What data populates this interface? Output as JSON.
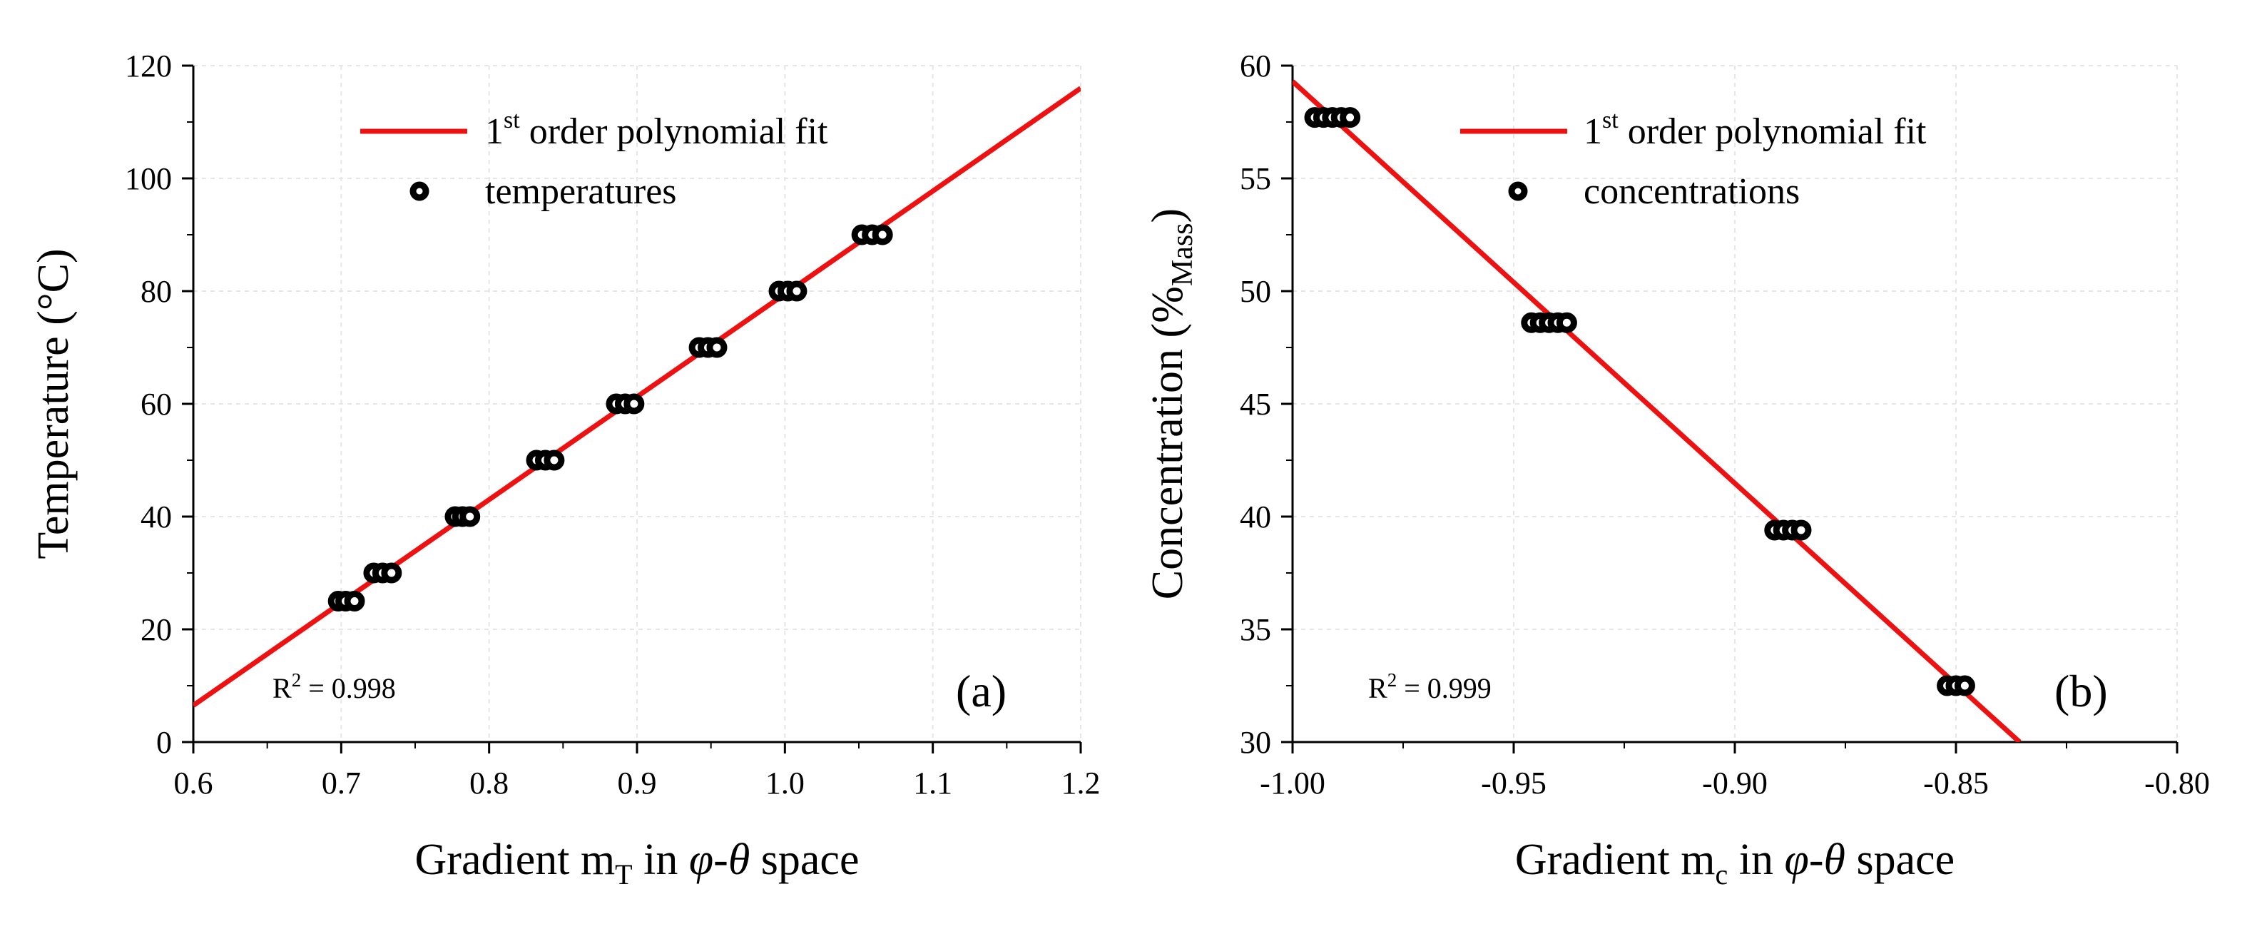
{
  "chart_data": [
    {
      "type": "scatter",
      "panel_label": "(a)",
      "xlabel": {
        "prefix": "Gradient m",
        "subscript": "T",
        "mid": " in ",
        "var1": "φ",
        "dash": "-",
        "var2": "θ",
        "suffix": " space"
      },
      "ylabel": "Temperature (°C)",
      "xlim": [
        0.6,
        1.2
      ],
      "ylim": [
        0,
        120
      ],
      "x_ticks": [
        "0.6",
        "0.7",
        "0.8",
        "0.9",
        "1.0",
        "1.1",
        "1.2"
      ],
      "y_ticks": [
        "0",
        "20",
        "40",
        "60",
        "80",
        "100",
        "120"
      ],
      "legend": {
        "fit": {
          "pre": "1",
          "sup": "st",
          "post": " order polynomial fit"
        },
        "points": "temperatures",
        "position": "top-center"
      },
      "r2": {
        "pre": "R",
        "sup": "2",
        "post": " = 0.998"
      },
      "fit_line": {
        "x": [
          0.6,
          1.2
        ],
        "y": [
          6.5,
          116
        ]
      },
      "series": [
        {
          "name": "temperatures",
          "y": 25,
          "x": [
            0.698,
            0.703,
            0.709
          ]
        },
        {
          "name": "temperatures",
          "y": 30,
          "x": [
            0.722,
            0.728,
            0.734
          ]
        },
        {
          "name": "temperatures",
          "y": 40,
          "x": [
            0.777,
            0.782,
            0.787
          ]
        },
        {
          "name": "temperatures",
          "y": 50,
          "x": [
            0.832,
            0.838,
            0.844
          ]
        },
        {
          "name": "temperatures",
          "y": 60,
          "x": [
            0.886,
            0.892,
            0.898
          ]
        },
        {
          "name": "temperatures",
          "y": 70,
          "x": [
            0.942,
            0.948,
            0.954
          ]
        },
        {
          "name": "temperatures",
          "y": 80,
          "x": [
            0.996,
            1.002,
            1.008
          ]
        },
        {
          "name": "temperatures",
          "y": 90,
          "x": [
            1.052,
            1.059,
            1.066
          ]
        }
      ]
    },
    {
      "type": "scatter",
      "panel_label": "(b)",
      "xlabel": {
        "prefix": "Gradient m",
        "subscript": "c",
        "mid": " in ",
        "var1": "φ",
        "dash": "-",
        "var2": "θ",
        "suffix": " space"
      },
      "ylabel": {
        "prefix": "Concentration (%",
        "subscript": "Mass",
        "suffix": ")"
      },
      "xlim": [
        -1.0,
        -0.8
      ],
      "ylim": [
        30,
        60
      ],
      "x_ticks": [
        "-1.00",
        "-0.95",
        "-0.90",
        "-0.85",
        "-0.80"
      ],
      "y_ticks": [
        "30",
        "35",
        "40",
        "45",
        "50",
        "55",
        "60"
      ],
      "legend": {
        "fit": {
          "pre": "1",
          "sup": "st",
          "post": " order polynomial fit"
        },
        "points": "concentrations",
        "position": "top-center"
      },
      "r2": {
        "pre": "R",
        "sup": "2",
        "post": " = 0.999"
      },
      "fit_line": {
        "x": [
          -1.0,
          -0.8356
        ],
        "y": [
          59.3,
          30
        ]
      },
      "series": [
        {
          "name": "concentrations",
          "y": 57.7,
          "x": [
            -0.995,
            -0.993,
            -0.991,
            -0.989,
            -0.987
          ]
        },
        {
          "name": "concentrations",
          "y": 48.6,
          "x": [
            -0.946,
            -0.944,
            -0.942,
            -0.94,
            -0.938
          ]
        },
        {
          "name": "concentrations",
          "y": 39.4,
          "x": [
            -0.891,
            -0.889,
            -0.887,
            -0.885
          ]
        },
        {
          "name": "concentrations",
          "y": 32.5,
          "x": [
            -0.852,
            -0.85,
            -0.848
          ]
        }
      ]
    }
  ]
}
